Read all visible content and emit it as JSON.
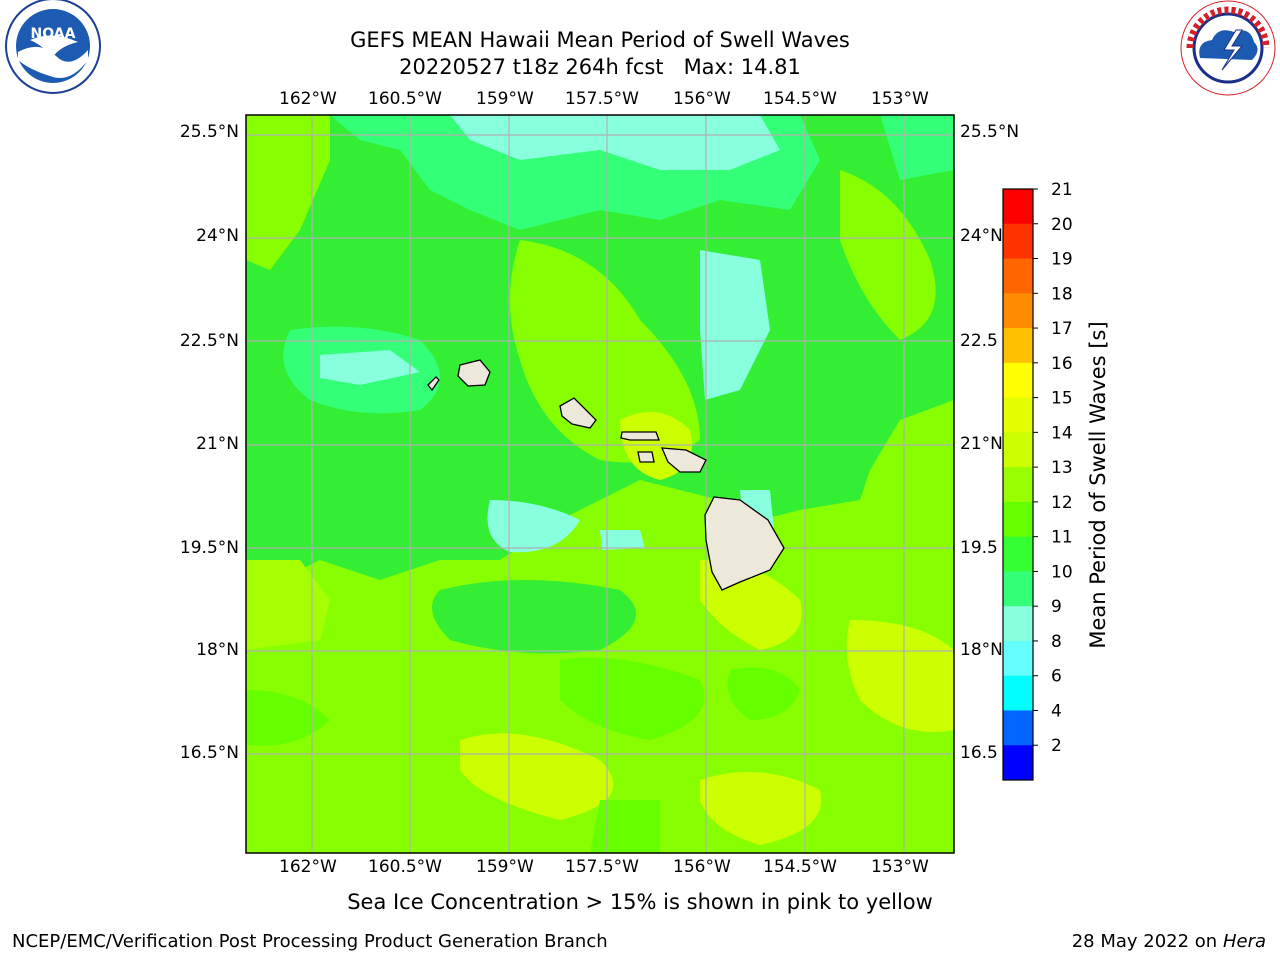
{
  "header": {
    "title": "GEFS MEAN Hawaii Mean Period of Swell Waves",
    "subtitle": "20220527 t18z 264h fcst   Max: 14.81"
  },
  "logos": {
    "left": {
      "name": "noaa-logo",
      "text": "NOAA"
    },
    "right": {
      "name": "nws-logo",
      "text": "NATIONAL WEATHER SERVICE"
    }
  },
  "map": {
    "lon_labels": [
      "162°W",
      "160.5°W",
      "159°W",
      "157.5°W",
      "156°W",
      "154.5°W",
      "153°W"
    ],
    "lat_labels": [
      "25.5°N",
      "24°N",
      "22.5°N",
      "21°N",
      "19.5°N",
      "18°N",
      "16.5°N"
    ],
    "lat_labels_right": [
      "25.5°N",
      "24°N",
      "22.5",
      "21°N",
      "19.5",
      "18°N",
      "16.5"
    ]
  },
  "colorbar": {
    "label": "Mean Period of Swell Waves [s]",
    "ticks": [
      "21",
      "20",
      "19",
      "18",
      "17",
      "16",
      "15",
      "14",
      "13",
      "12",
      "11",
      "10",
      "9",
      "8",
      "6",
      "4",
      "2"
    ],
    "colors": [
      "#ff0000",
      "#ff3300",
      "#ff6600",
      "#ff8c00",
      "#ffc000",
      "#ffff00",
      "#e6ff00",
      "#ccff00",
      "#99ff00",
      "#66ff00",
      "#33ff33",
      "#33ff77",
      "#88ffdd",
      "#66ffff",
      "#00ffff",
      "#0066ff",
      "#0000ff"
    ]
  },
  "footer": {
    "caption": "Sea Ice Concentration > 15% is shown in pink to yellow",
    "left": "NCEP/EMC/Verification Post Processing Product Generation Branch",
    "date": "28 May 2022 on",
    "host": "Hera"
  }
}
